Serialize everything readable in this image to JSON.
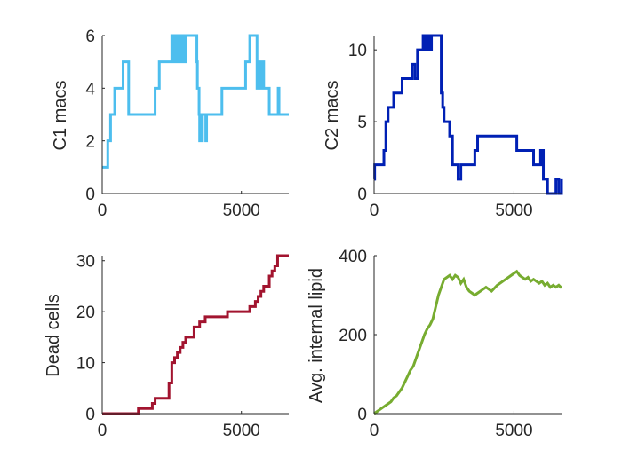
{
  "chart_data": [
    {
      "type": "line",
      "ylabel": "C1 macs",
      "xlabel": "",
      "xlim": [
        0,
        6700
      ],
      "ylim": [
        0,
        6
      ],
      "xticks": [
        0,
        5000
      ],
      "yticks": [
        0,
        2,
        4,
        6
      ],
      "xtick_labels": [
        "0",
        "5000"
      ],
      "ytick_labels": [
        "0",
        "2",
        "4",
        "6"
      ],
      "series": [
        {
          "color": "#4DBEEE",
          "step": true,
          "x": [
            0,
            200,
            300,
            380,
            450,
            700,
            750,
            850,
            950,
            1200,
            1700,
            1900,
            2050,
            2400,
            2500,
            2530,
            2560,
            2600,
            2620,
            2660,
            2700,
            2750,
            2800,
            2820,
            2840,
            2900,
            2920,
            2950,
            2970,
            3000,
            3050,
            3100,
            3250,
            3400,
            3420,
            3480,
            3500,
            3520,
            3530,
            3540,
            3560,
            3600,
            3650,
            3700,
            3720,
            3750,
            3800,
            4100,
            4300,
            5000,
            5150,
            5300,
            5550,
            5560,
            5600,
            5620,
            5650,
            5700,
            5750,
            5800,
            5900,
            6000,
            6300,
            6320,
            6350,
            6700
          ],
          "y": [
            1,
            2,
            3,
            3,
            4,
            4,
            5,
            5,
            3,
            3,
            3,
            4,
            5,
            5,
            6,
            5,
            6,
            5,
            6,
            5,
            6,
            5,
            6,
            5,
            6,
            6,
            5,
            6,
            5,
            6,
            6,
            6,
            6,
            5,
            4,
            3,
            2,
            3,
            2,
            3,
            2,
            3,
            3,
            3,
            2,
            3,
            3,
            3,
            4,
            4,
            5,
            6,
            6,
            4,
            5,
            4,
            5,
            4,
            5,
            4,
            4,
            3,
            3,
            4,
            3,
            3
          ]
        }
      ]
    },
    {
      "type": "line",
      "ylabel": "C2 macs",
      "xlabel": "",
      "xlim": [
        0,
        6700
      ],
      "ylim": [
        0,
        11
      ],
      "xticks": [
        0,
        5000
      ],
      "yticks": [
        0,
        5,
        10
      ],
      "xtick_labels": [
        "0",
        "5000"
      ],
      "ytick_labels": [
        "0",
        "5",
        "10"
      ],
      "series": [
        {
          "color": "#0020B4",
          "step": true,
          "x": [
            0,
            20,
            350,
            420,
            500,
            600,
            700,
            800,
            1000,
            1200,
            1350,
            1450,
            1550,
            1750,
            1800,
            1850,
            1900,
            1920,
            1950,
            1980,
            2000,
            2050,
            2100,
            2150,
            2200,
            2300,
            2400,
            2450,
            2500,
            2600,
            2700,
            2800,
            2900,
            3000,
            3100,
            3300,
            3600,
            3700,
            4500,
            5100,
            5700,
            5900,
            5950,
            5980,
            6000,
            6050,
            6100,
            6200,
            6300,
            6500,
            6600,
            6700
          ],
          "y": [
            1,
            2,
            3,
            5,
            6,
            6,
            7,
            7,
            8,
            8,
            9,
            8,
            10,
            11,
            10,
            11,
            10,
            11,
            10,
            11,
            10,
            11,
            11,
            11,
            11,
            11,
            7,
            6,
            5,
            5,
            4,
            2,
            2,
            1,
            2,
            2,
            3,
            4,
            4,
            3,
            2,
            2,
            3,
            2,
            3,
            1,
            1,
            0,
            0,
            1,
            0,
            1
          ]
        }
      ]
    },
    {
      "type": "line",
      "ylabel": "Dead cells",
      "xlabel": "",
      "xlim": [
        0,
        6700
      ],
      "ylim": [
        0,
        31
      ],
      "xticks": [
        0,
        5000
      ],
      "yticks": [
        0,
        10,
        20,
        30
      ],
      "xtick_labels": [
        "0",
        "5000"
      ],
      "ytick_labels": [
        "0",
        "10",
        "20",
        "30"
      ],
      "series": [
        {
          "color": "#A2142F",
          "step": true,
          "x": [
            0,
            1300,
            1700,
            1800,
            1900,
            2200,
            2400,
            2500,
            2600,
            2700,
            2800,
            2900,
            3000,
            3100,
            3200,
            3300,
            3500,
            3700,
            3900,
            4000,
            4200,
            4500,
            5000,
            5300,
            5500,
            5600,
            5700,
            5800,
            5900,
            6000,
            6100,
            6200,
            6300,
            6700
          ],
          "y": [
            0,
            1,
            1,
            2,
            3,
            3,
            6,
            10,
            11,
            12,
            13,
            14,
            15,
            15,
            15,
            17,
            18,
            19,
            19,
            19,
            19,
            20,
            20,
            21,
            22,
            23,
            24,
            25,
            25,
            27,
            28,
            29,
            31,
            31
          ]
        }
      ]
    },
    {
      "type": "line",
      "ylabel": "Avg. internal lipid",
      "xlabel": "",
      "xlim": [
        0,
        6700
      ],
      "ylim": [
        0,
        400
      ],
      "xticks": [
        0,
        5000
      ],
      "yticks": [
        0,
        200,
        400
      ],
      "xtick_labels": [
        "0",
        "5000"
      ],
      "ytick_labels": [
        "0",
        "200",
        "400"
      ],
      "series": [
        {
          "color": "#77AC30",
          "step": false,
          "x": [
            0,
            100,
            200,
            300,
            400,
            500,
            600,
            700,
            800,
            900,
            1000,
            1100,
            1200,
            1300,
            1400,
            1500,
            1600,
            1700,
            1800,
            1900,
            2000,
            2100,
            2200,
            2300,
            2400,
            2500,
            2600,
            2700,
            2800,
            2900,
            3000,
            3100,
            3200,
            3300,
            3400,
            3500,
            3600,
            3700,
            3800,
            3900,
            4000,
            4200,
            4400,
            4600,
            4800,
            5000,
            5100,
            5200,
            5300,
            5400,
            5500,
            5600,
            5700,
            5800,
            5900,
            6000,
            6100,
            6200,
            6300,
            6400,
            6500,
            6600,
            6700
          ],
          "y": [
            0,
            5,
            10,
            15,
            20,
            25,
            30,
            40,
            45,
            55,
            65,
            80,
            95,
            110,
            120,
            140,
            160,
            180,
            200,
            215,
            225,
            240,
            270,
            300,
            320,
            340,
            345,
            350,
            340,
            350,
            345,
            330,
            340,
            320,
            310,
            305,
            300,
            305,
            310,
            315,
            320,
            310,
            325,
            335,
            345,
            355,
            360,
            350,
            345,
            340,
            345,
            335,
            340,
            335,
            330,
            335,
            325,
            330,
            320,
            325,
            320,
            325,
            318
          ]
        }
      ]
    }
  ]
}
